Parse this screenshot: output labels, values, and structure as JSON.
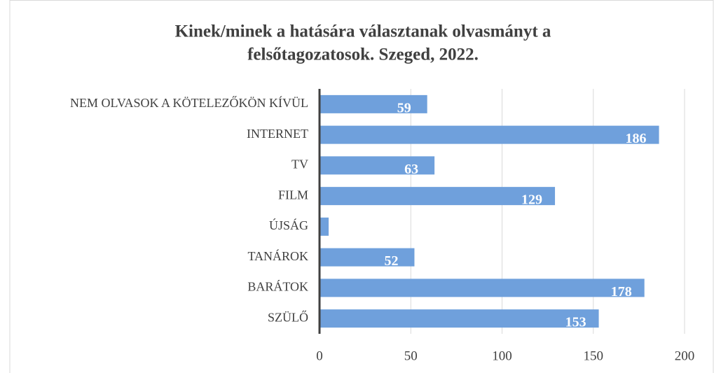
{
  "chart_data": {
    "type": "barh",
    "title": [
      "Kinek/minek a hatására választanak olvasmányt a",
      "felsőtagozatosok. Szeged, 2022."
    ],
    "categories": [
      "NEM OLVASOK A KÖTELEZŐKÖN KÍVÜL",
      "INTERNET",
      "TV",
      "FILM",
      "ÚJSÁG",
      "TANÁROK",
      "BARÁTOK",
      "SZÜLŐ"
    ],
    "values": [
      59,
      186,
      63,
      129,
      5,
      52,
      178,
      153
    ],
    "value_labels": [
      59,
      186,
      63,
      129,
      null,
      52,
      178,
      153
    ],
    "color": "#6fa0dc",
    "xlim": [
      0,
      200
    ],
    "xticks": [
      0,
      50,
      100,
      150,
      200
    ],
    "grid": true
  }
}
